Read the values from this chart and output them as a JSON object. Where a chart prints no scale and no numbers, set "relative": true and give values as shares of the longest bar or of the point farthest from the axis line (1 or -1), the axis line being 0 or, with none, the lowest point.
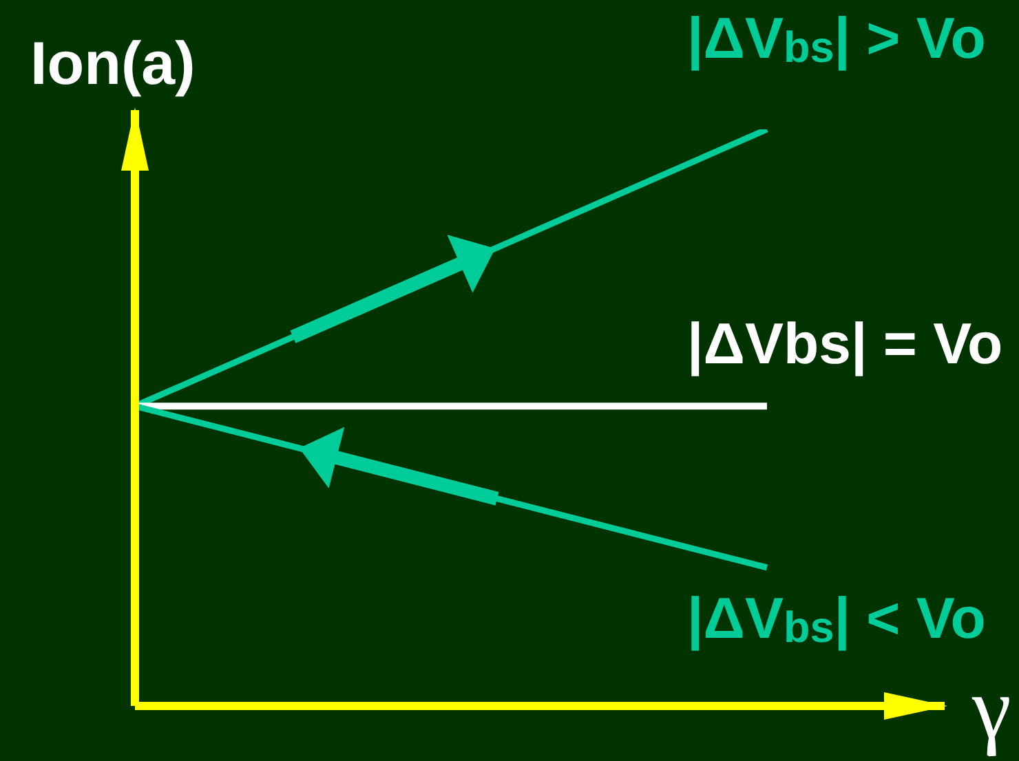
{
  "chart_data": {
    "type": "line",
    "relative": true,
    "xlabel": "γ",
    "ylabel": "Ion(a)",
    "categories": [
      null,
      null
    ],
    "series": [
      {
        "name": "|ΔV$_{bs}$| > Vo",
        "color": "#00cc99",
        "values": [
          0.52,
          1
        ]
      },
      {
        "name": "|ΔVbs| = Vo",
        "color": "#ffffff",
        "values": [
          0.52,
          0.52
        ]
      },
      {
        "name": "|ΔV$_{bs}$| < Vo",
        "color": "#00cc99",
        "values": [
          0.52,
          0.24
        ]
      }
    ]
  }
}
